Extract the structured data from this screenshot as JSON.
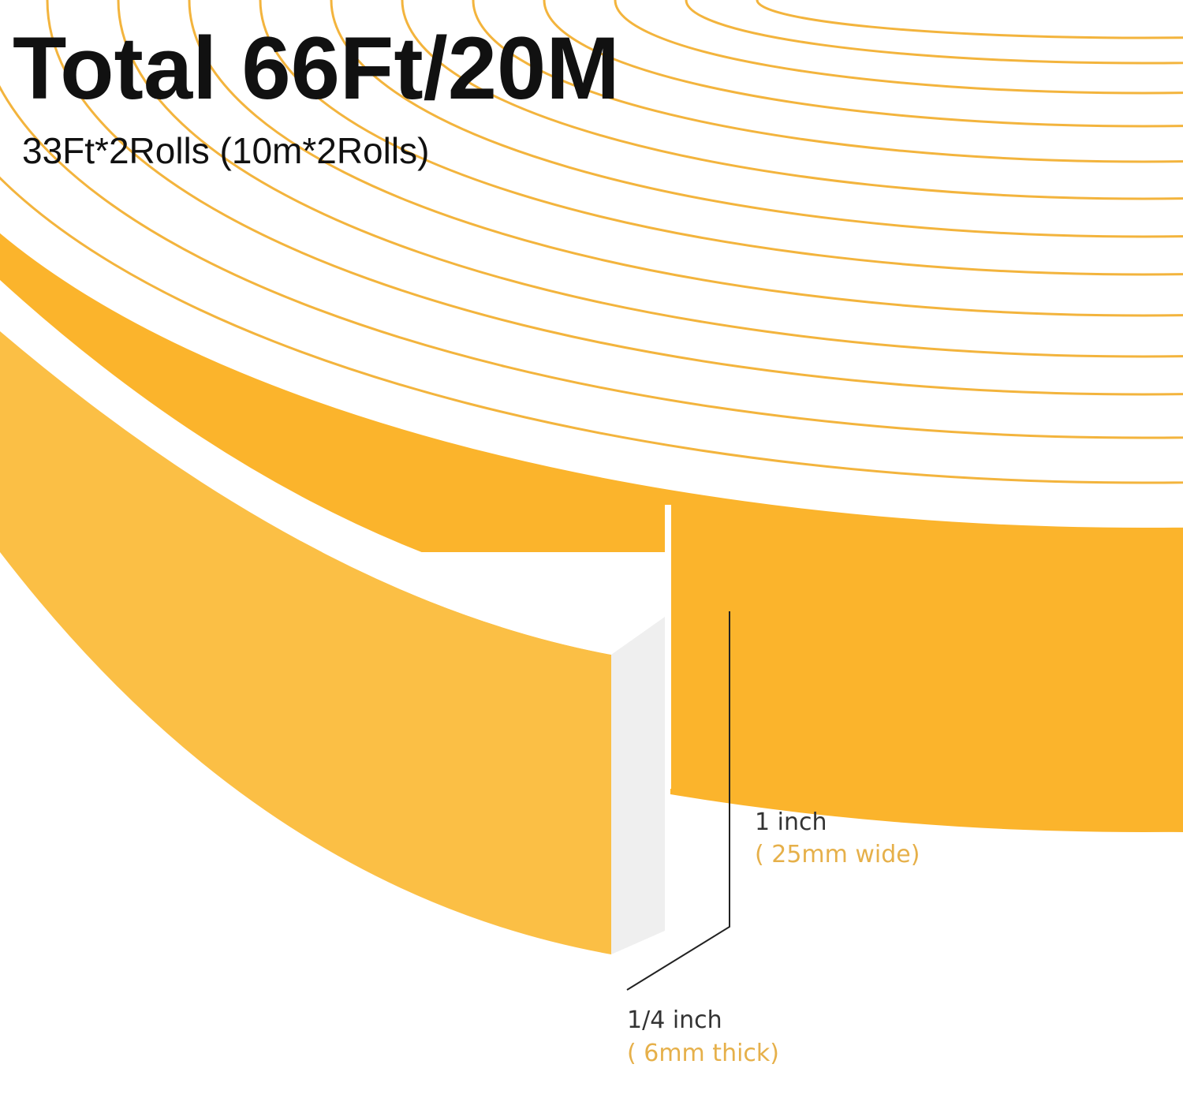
{
  "header": {
    "title": "Total 66Ft/20M",
    "subtitle": "33Ft*2Rolls (10m*2Rolls)"
  },
  "dimensions": {
    "width": {
      "label": "1 inch",
      "metric": "( 25mm wide)"
    },
    "thickness": {
      "label": "1/4 inch",
      "metric": "( 6mm thick)"
    }
  }
}
